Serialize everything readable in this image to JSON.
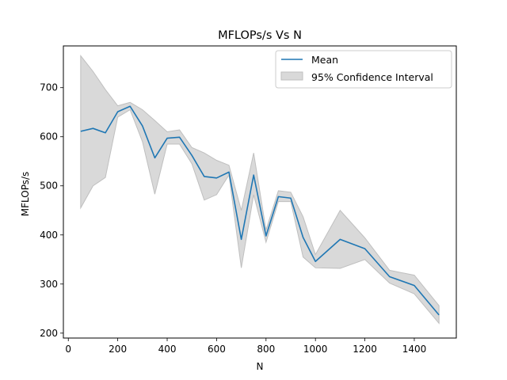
{
  "chart_data": {
    "type": "line",
    "title": "MFLOPs/s Vs N",
    "xlabel": "N",
    "ylabel": "MFLOPs/s",
    "xlim": [
      -20,
      1570
    ],
    "ylim": [
      190,
      785
    ],
    "xticks": [
      0,
      200,
      400,
      600,
      800,
      1000,
      1200,
      1400
    ],
    "yticks": [
      200,
      300,
      400,
      500,
      600,
      700
    ],
    "grid": false,
    "legend_position": "top-right",
    "x": [
      50,
      100,
      150,
      200,
      250,
      300,
      350,
      400,
      450,
      500,
      550,
      600,
      650,
      700,
      750,
      800,
      850,
      900,
      950,
      1000,
      1100,
      1200,
      1300,
      1400,
      1500
    ],
    "series": [
      {
        "name": "Mean",
        "color": "#1f77b4",
        "values": [
          611,
          617,
          608,
          651,
          662,
          622,
          557,
          597,
          599,
          562,
          519,
          516,
          528,
          391,
          522,
          398,
          478,
          475,
          395,
          346,
          391,
          372,
          315,
          297,
          237
        ]
      },
      {
        "name": "95% Confidence Interval",
        "color": "#bfbfbf",
        "lower": [
          455,
          500,
          517,
          640,
          655,
          590,
          483,
          585,
          585,
          545,
          471,
          482,
          522,
          333,
          482,
          385,
          468,
          468,
          355,
          333,
          332,
          350,
          302,
          280,
          220
        ],
        "upper": [
          765,
          733,
          696,
          663,
          670,
          655,
          633,
          610,
          614,
          578,
          567,
          552,
          542,
          450,
          567,
          410,
          490,
          487,
          437,
          360,
          450,
          394,
          328,
          318,
          256
        ]
      }
    ]
  }
}
